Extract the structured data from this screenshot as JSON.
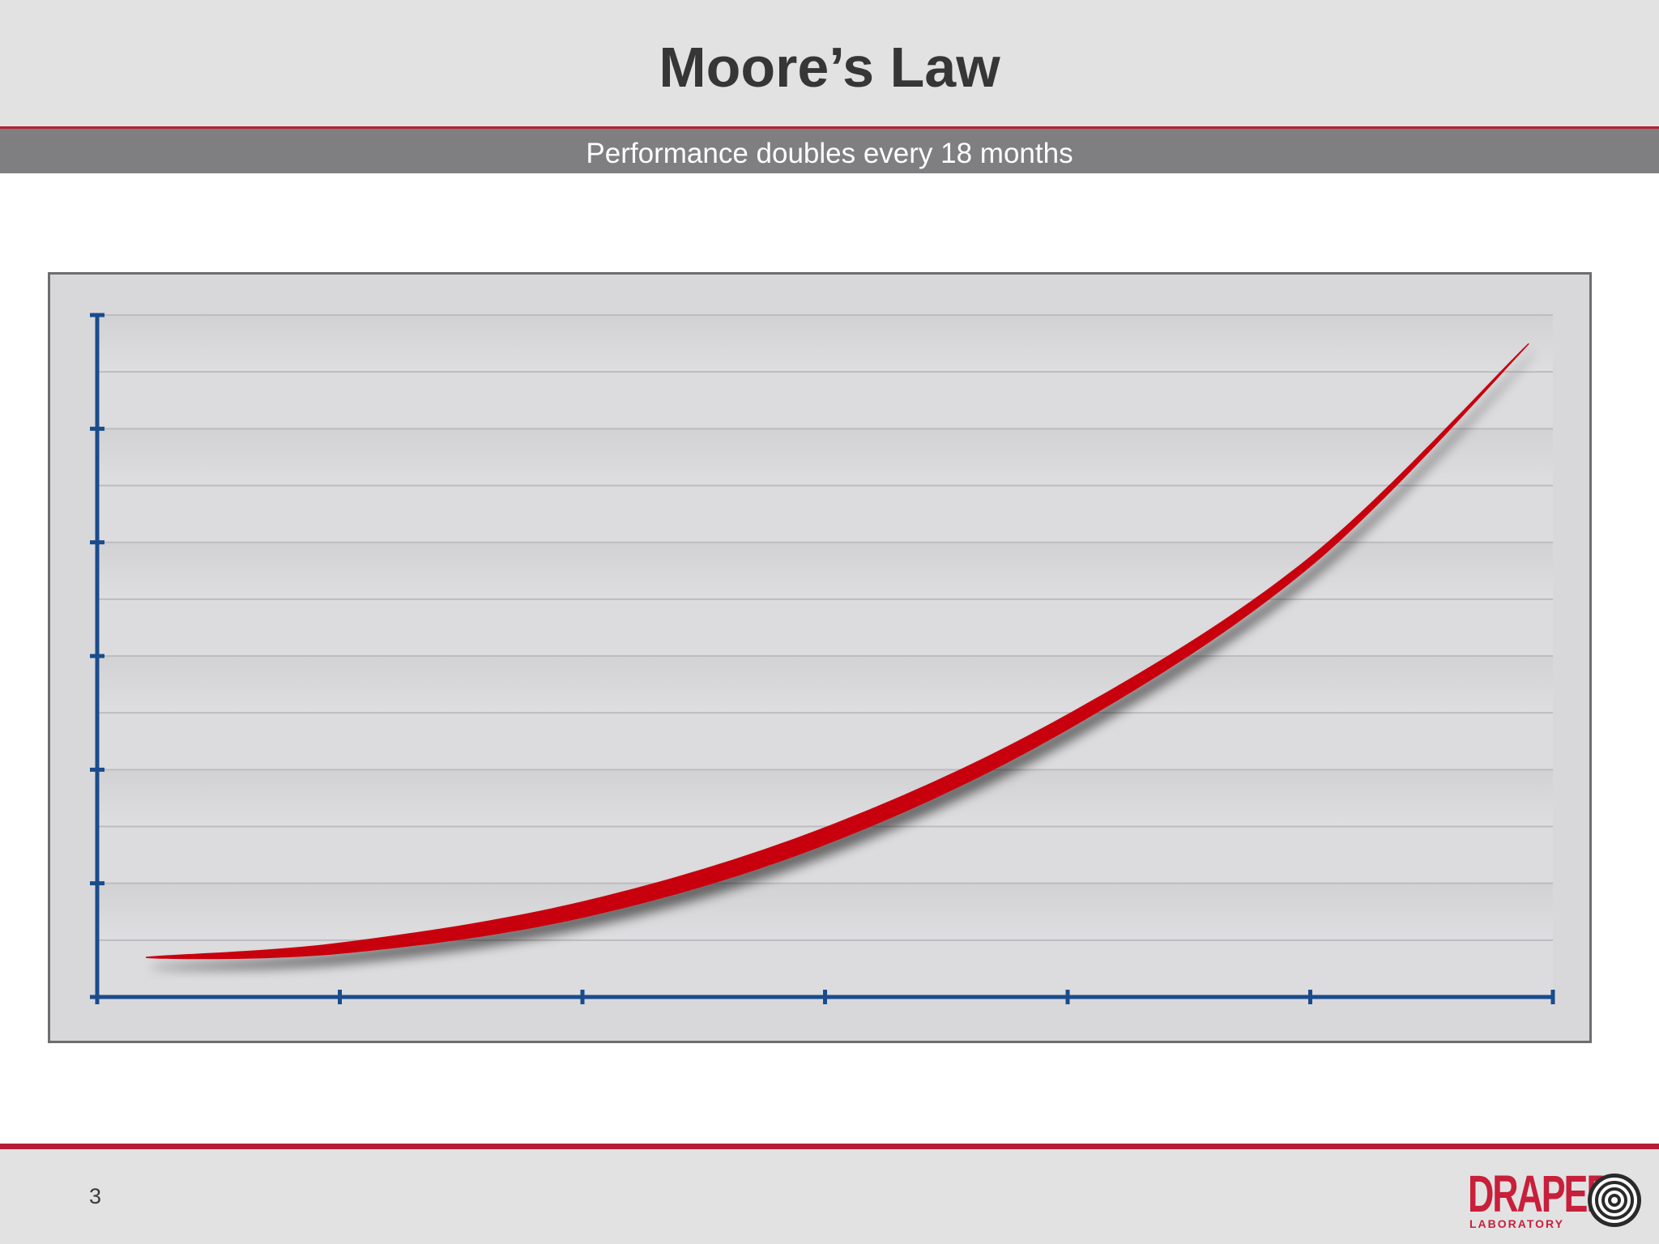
{
  "slide": {
    "title": "Moore’s Law",
    "subtitle": "Performance doubles every 18 months",
    "page_number": "3"
  },
  "logo": {
    "word": "DRAPER",
    "sub": "LABORATORY",
    "color": "#c81f3a"
  },
  "colors": {
    "accent": "#b51f35",
    "curve": "#c8000f",
    "axis": "#1a4c8c",
    "plot_bg": "#d8d8da"
  },
  "chart_data": {
    "type": "line",
    "title": "",
    "xlabel": "",
    "ylabel": "",
    "x_ticks": 7,
    "y_ticks": 7,
    "grid": true,
    "xlim": [
      0,
      6
    ],
    "ylim": [
      0,
      12
    ],
    "series": [
      {
        "x": [
          0.2,
          1,
          2,
          3,
          4,
          5,
          5.9
        ],
        "values": [
          0.7,
          0.9,
          1.6,
          2.9,
          4.9,
          7.7,
          11.5
        ]
      }
    ]
  }
}
